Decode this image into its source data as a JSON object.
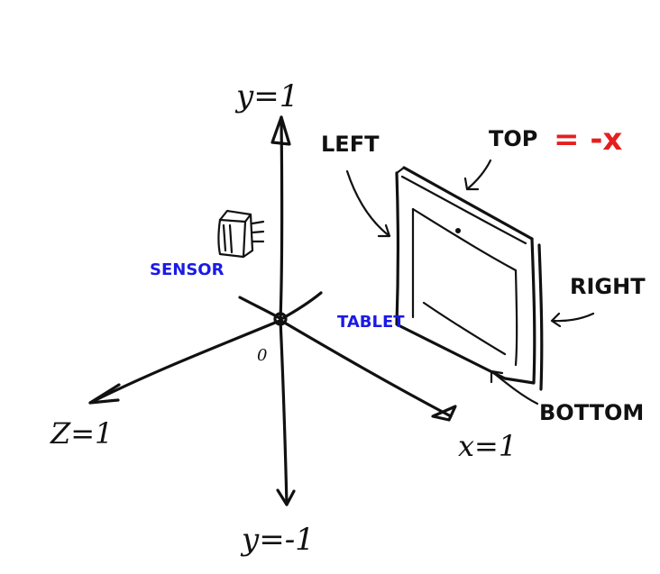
{
  "labels": {
    "y_top": "y=1",
    "y_bottom": "y=-1",
    "z_axis": "Z=1",
    "x_axis": "x=1",
    "origin": "0",
    "sensor": "SENSOR",
    "tablet": "TABLET",
    "left": "LEFT",
    "top": "TOP",
    "top_equals": "= -x",
    "right": "RIGHT",
    "bottom": "BOTTOM"
  },
  "colors": {
    "ink": "#111111",
    "blue_annotation": "#1a1ae6",
    "red_annotation": "#e61e1e"
  }
}
